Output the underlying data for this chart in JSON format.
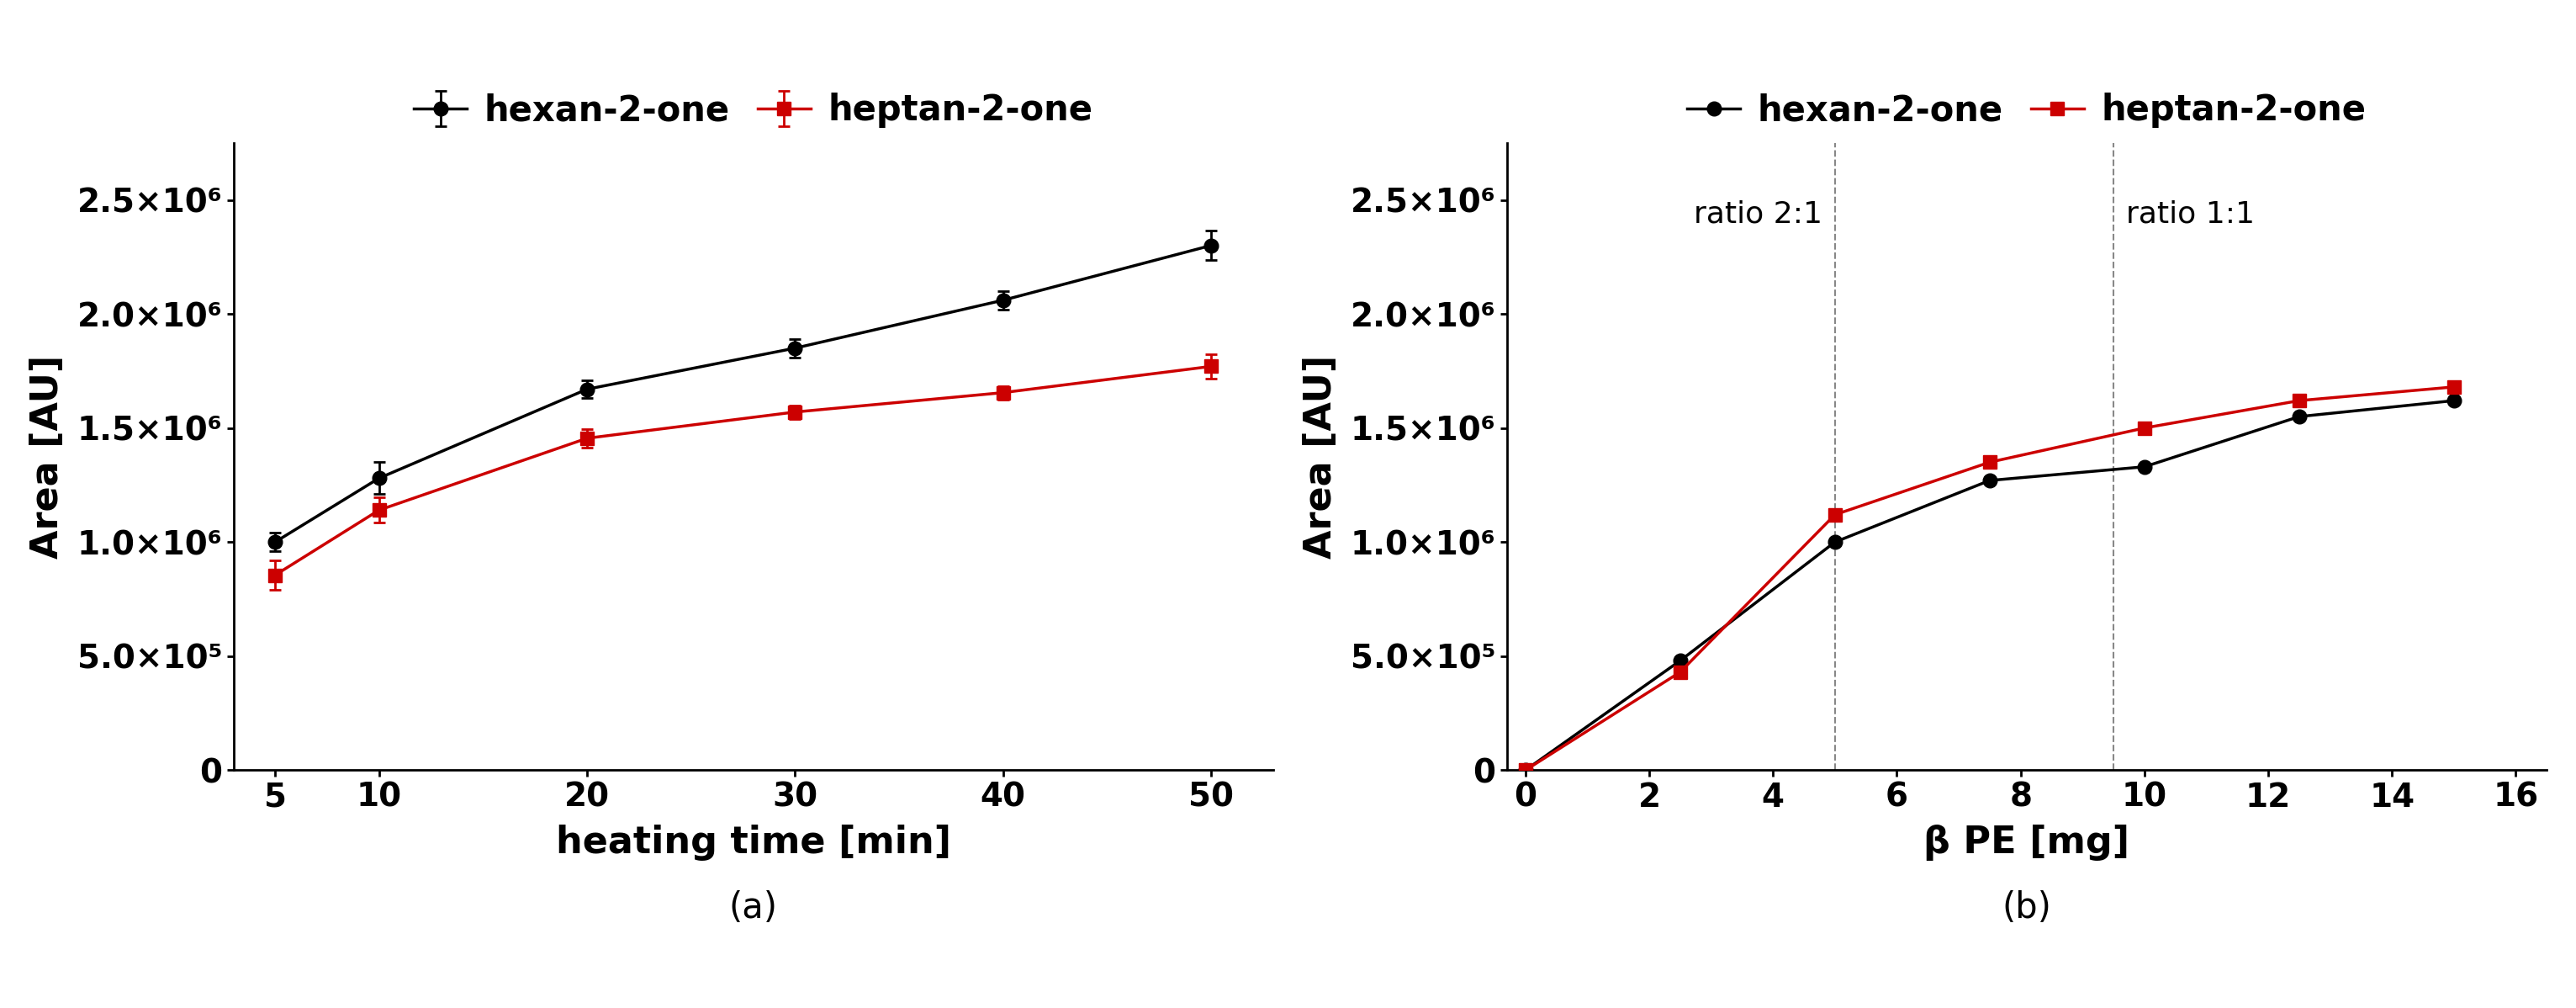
{
  "panel_a": {
    "xlabel": "heating time [min]",
    "ylabel": "Area [AU]",
    "xlim": [
      3,
      53
    ],
    "ylim": [
      0,
      2750000.0
    ],
    "xticks": [
      5,
      10,
      20,
      30,
      40,
      50
    ],
    "yticks": [
      0,
      500000.0,
      1000000.0,
      1500000.0,
      2000000.0,
      2500000.0
    ],
    "ytick_labels": [
      "0",
      "5.0×10⁵",
      "1.0×10⁶",
      "1.5×10⁶",
      "2.0×10⁶",
      "2.5×10⁶"
    ],
    "hex_x": [
      5,
      10,
      20,
      30,
      40,
      50
    ],
    "hex_y": [
      1000000.0,
      1280000.0,
      1670000.0,
      1850000.0,
      2060000.0,
      2300000.0
    ],
    "hex_yerr": [
      40000.0,
      70000.0,
      40000.0,
      40000.0,
      40000.0,
      65000.0
    ],
    "hep_x": [
      5,
      10,
      20,
      30,
      40,
      50
    ],
    "hep_y": [
      855000.0,
      1140000.0,
      1455000.0,
      1570000.0,
      1655000.0,
      1770000.0
    ],
    "hep_yerr": [
      65000.0,
      55000.0,
      40000.0,
      30000.0,
      30000.0,
      55000.0
    ],
    "label": "(a)"
  },
  "panel_b": {
    "xlabel": "β PE [mg]",
    "ylabel": "Area [AU]",
    "xlim": [
      -0.3,
      16.5
    ],
    "ylim": [
      0,
      2750000.0
    ],
    "xticks": [
      0,
      2,
      4,
      6,
      8,
      10,
      12,
      14,
      16
    ],
    "yticks": [
      0,
      500000.0,
      1000000.0,
      1500000.0,
      2000000.0,
      2500000.0
    ],
    "ytick_labels": [
      "0",
      "5.0×10⁵",
      "1.0×10⁶",
      "1.5×10⁶",
      "2.0×10⁶",
      "2.5×10⁶"
    ],
    "hex_x": [
      0,
      2.5,
      5,
      7.5,
      10,
      12.5,
      15
    ],
    "hex_y": [
      0,
      480000.0,
      1000000.0,
      1270000.0,
      1330000.0,
      1550000.0,
      1620000.0
    ],
    "hep_x": [
      0,
      2.5,
      5,
      7.5,
      10,
      12.5,
      15
    ],
    "hep_y": [
      0,
      430000.0,
      1120000.0,
      1350000.0,
      1500000.0,
      1620000.0,
      1680000.0
    ],
    "vline1_x": 5.0,
    "vline2_x": 9.5,
    "annotation1": "ratio 2:1",
    "annotation2": "ratio 1:1",
    "label": "(b)"
  },
  "legend_hex_label": "hexan-2-one",
  "legend_hep_label": "heptan-2-one",
  "line_color_hex": "#000000",
  "line_color_hep": "#cc0000",
  "background_color": "#ffffff",
  "font_size_ticks": 28,
  "font_size_labels": 32,
  "font_size_legend": 30,
  "font_size_annotation": 26,
  "font_size_sublabel": 30,
  "marker_size": 12,
  "line_width": 2.5
}
